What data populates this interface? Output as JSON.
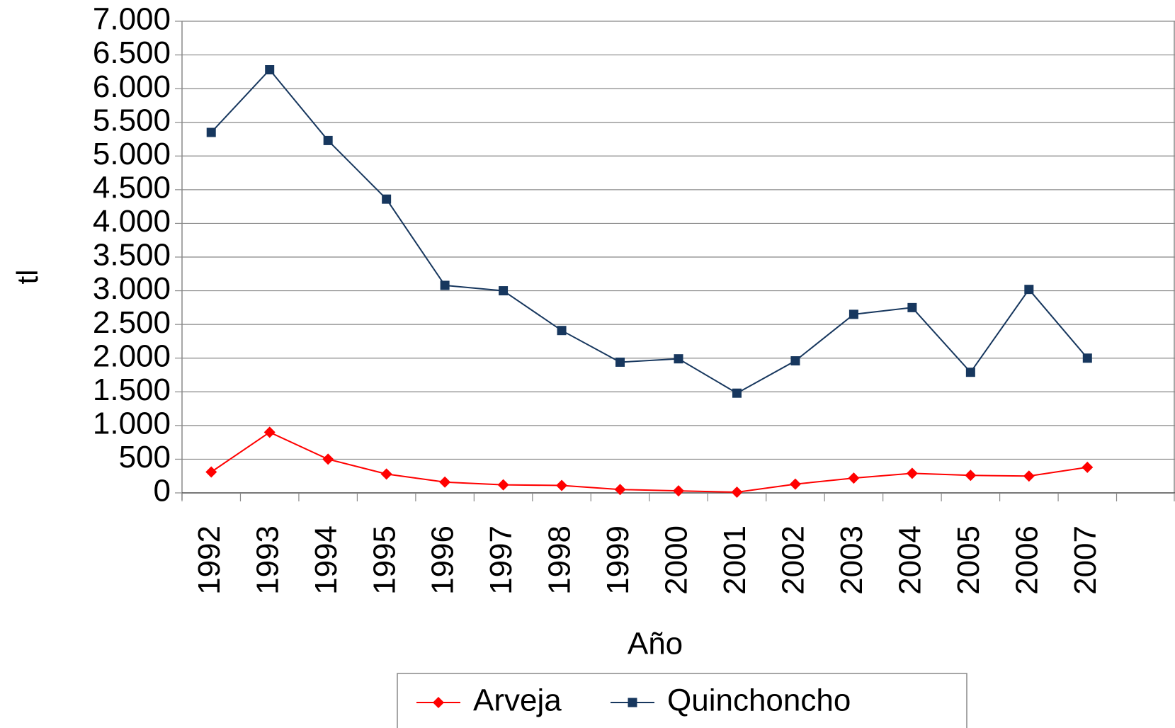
{
  "chart_data": {
    "type": "line",
    "x_label": "Año",
    "y_label": "tl",
    "categories": [
      "1992",
      "1993",
      "1994",
      "1995",
      "1996",
      "1997",
      "1998",
      "1999",
      "2000",
      "2001",
      "2002",
      "2003",
      "2004",
      "2005",
      "2006",
      "2007",
      null
    ],
    "series": [
      {
        "name": "Arveja",
        "color": "#ff0000",
        "marker": "diamond",
        "values": [
          310,
          900,
          500,
          280,
          160,
          120,
          110,
          50,
          30,
          10,
          130,
          220,
          290,
          260,
          250,
          380,
          null
        ]
      },
      {
        "name": "Quinchoncho",
        "color": "#17375e",
        "marker": "square",
        "values": [
          5350,
          6280,
          5230,
          4360,
          3080,
          3000,
          2410,
          1940,
          1990,
          1480,
          1960,
          2650,
          2750,
          1790,
          3020,
          2000,
          null
        ]
      }
    ],
    "ylim": [
      0,
      7000
    ],
    "yticks": [
      0,
      500,
      {
        "value": 1000,
        "label": "1.000"
      },
      {
        "value": 1500,
        "label": "1.500"
      },
      {
        "value": 2000,
        "label": "2.000"
      },
      {
        "value": 2500,
        "label": "2.500"
      },
      {
        "value": 3000,
        "label": "3.000"
      },
      {
        "value": 3500,
        "label": "3.500"
      },
      {
        "value": 4000,
        "label": "4.000"
      },
      {
        "value": 4500,
        "label": "4.500"
      },
      {
        "value": 5000,
        "label": "5.000"
      },
      {
        "value": 5500,
        "label": "5.500"
      },
      {
        "value": 6000,
        "label": "6.000"
      },
      {
        "value": 6500,
        "label": "6.500"
      },
      {
        "value": 7000,
        "label": "7.000"
      }
    ],
    "grid": true,
    "legend": "bottom"
  }
}
